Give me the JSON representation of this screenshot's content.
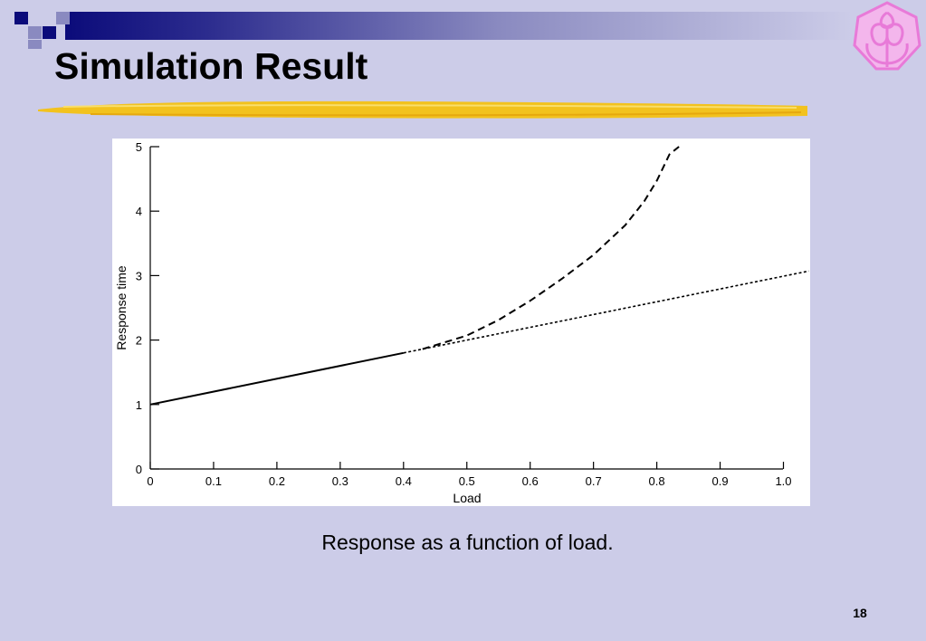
{
  "slide": {
    "title": "Simulation Result",
    "caption": "Response as a function of load.",
    "page_number": "18"
  },
  "colors": {
    "background": "#cccce8",
    "header_bar_dark": "#0b0b7a",
    "underline": "#f2c21e",
    "logo": "#e87ad8"
  },
  "icons": {
    "logo": "flower-emblem-logo"
  },
  "chart_data": {
    "type": "line",
    "title": "",
    "xlabel": "Load",
    "ylabel": "Response time",
    "xlim": [
      0,
      1.04
    ],
    "ylim": [
      0,
      5
    ],
    "x_ticks": [
      0,
      0.1,
      0.2,
      0.3,
      0.4,
      0.5,
      0.6,
      0.7,
      0.8,
      0.9,
      1.0
    ],
    "x_tick_labels": [
      "0",
      "0.1",
      "0.2",
      "0.3",
      "0.4",
      "0.5",
      "0.6",
      "0.7",
      "0.8",
      "0.9",
      "1.0"
    ],
    "y_ticks": [
      0,
      1,
      2,
      3,
      4,
      5
    ],
    "y_tick_labels": [
      "0",
      "1",
      "2",
      "3",
      "4",
      "5"
    ],
    "grid": false,
    "legend": "none",
    "series": [
      {
        "style": "solid",
        "x": [
          0,
          0.4
        ],
        "y": [
          1.0,
          1.8
        ]
      },
      {
        "style": "dotted",
        "x": [
          0.4,
          1.04
        ],
        "y": [
          1.8,
          3.07
        ]
      },
      {
        "style": "dashed",
        "x": [
          0.43,
          0.5,
          0.55,
          0.6,
          0.65,
          0.7,
          0.75,
          0.78,
          0.8,
          0.82,
          0.835
        ],
        "y": [
          1.86,
          2.07,
          2.31,
          2.61,
          2.95,
          3.32,
          3.78,
          4.15,
          4.47,
          4.88,
          5.0
        ]
      }
    ]
  }
}
